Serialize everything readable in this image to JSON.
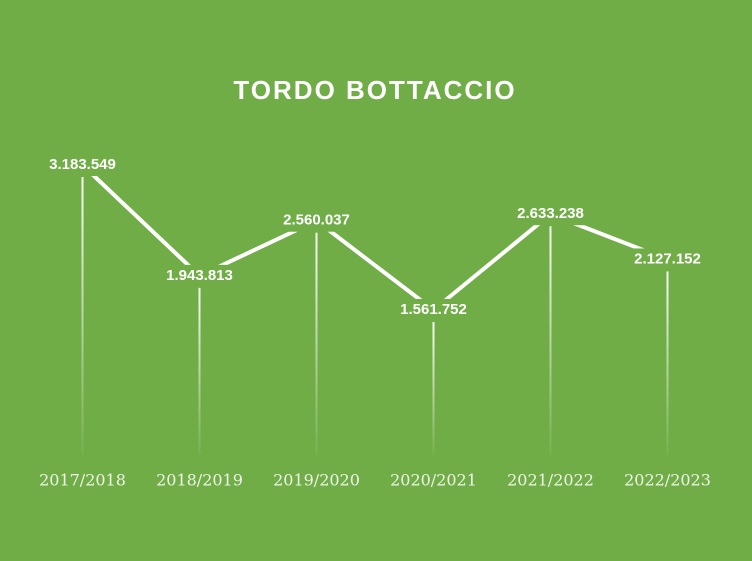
{
  "chart_data": {
    "type": "line",
    "title": "TORDO BOTTACCIO",
    "categories": [
      "2017/2018",
      "2018/2019",
      "2019/2020",
      "2020/2021",
      "2021/2022",
      "2022/2023"
    ],
    "values": [
      3183549,
      1943813,
      2560037,
      1561752,
      2633238,
      2127152
    ],
    "value_labels": [
      "3.183.549",
      "1.943.813",
      "2.560.037",
      "1.561.752",
      "2.633.238",
      "2.127.152"
    ],
    "color": "#ffffff"
  }
}
